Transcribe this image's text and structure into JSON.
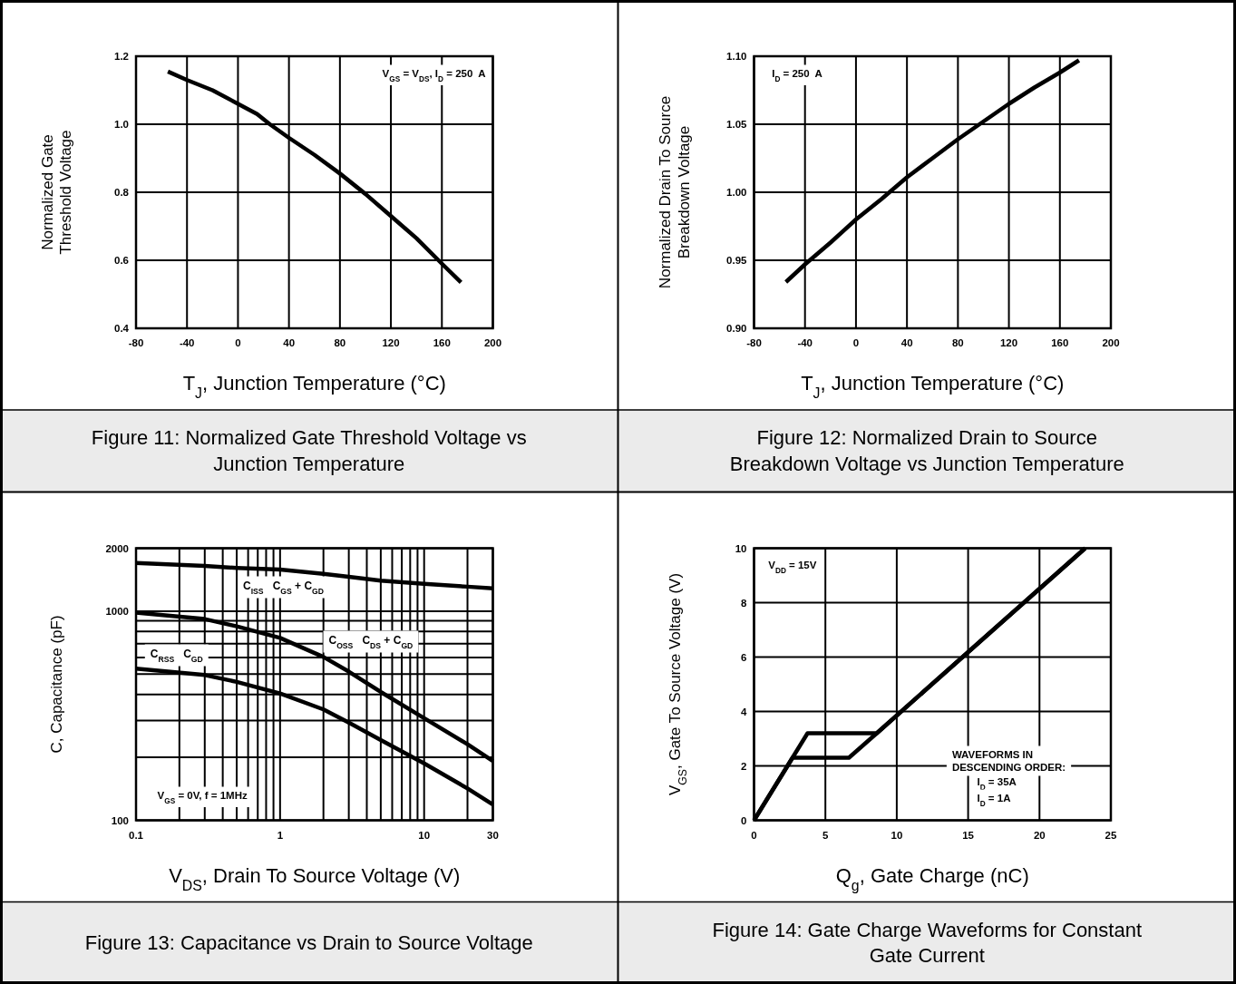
{
  "chart_data": [
    {
      "type": "line",
      "title": "Figure 11: Normalized Gate Threshold Voltage vs\nJunction Temperature",
      "xlabel": "T$_{J}$, Junction Temperature (°C)",
      "ylabel": "Normalized Gate\nThreshold Voltage",
      "xlim": [
        -80,
        200
      ],
      "xticks": [
        -80,
        -40,
        0,
        40,
        80,
        120,
        160,
        200
      ],
      "ylim": [
        0.4,
        1.2
      ],
      "yticks": [
        0.4,
        0.6,
        0.8,
        {
          "value": 1,
          "label": "1.0"
        },
        1.2
      ],
      "grid": true,
      "x": [
        -55,
        -40,
        -20,
        0,
        15,
        25,
        40,
        60,
        80,
        100,
        120,
        140,
        160,
        175
      ],
      "series": [
        {
          "color": "#000000",
          "values": [
            1.155,
            1.13,
            1.1,
            1.06,
            1.03,
            1.0,
            0.96,
            0.91,
            0.855,
            0.795,
            0.73,
            0.665,
            0.59,
            0.535
          ]
        }
      ],
      "annotations": [
        "V$_{GS}$ = V$_{DS}$, I$_{D}$ = 250  A"
      ]
    },
    {
      "type": "line",
      "title": "Figure 12: Normalized Drain to Source\nBreakdown Voltage vs Junction Temperature",
      "xlabel": "T$_{J}$, Junction Temperature (°C)",
      "ylabel": "Normalized Drain To Source\nBreakdown Voltage",
      "xlim": [
        -80,
        200
      ],
      "xticks": [
        -80,
        -40,
        0,
        40,
        80,
        120,
        160,
        200
      ],
      "ylim": [
        0.9,
        1.1
      ],
      "yticks": [
        {
          "value": 0.9,
          "label": "0.90"
        },
        0.95,
        {
          "value": 1,
          "label": "1.00"
        },
        1.05,
        {
          "value": 1.1,
          "label": "1.10"
        }
      ],
      "grid": true,
      "x": [
        -55,
        -40,
        -20,
        0,
        20,
        40,
        60,
        80,
        100,
        120,
        140,
        160,
        175
      ],
      "series": [
        {
          "color": "#000000",
          "values": [
            0.934,
            0.947,
            0.963,
            0.98,
            0.995,
            1.011,
            1.025,
            1.039,
            1.052,
            1.065,
            1.077,
            1.088,
            1.097
          ]
        }
      ],
      "annotations": [
        "I$_{D}$ = 250  A"
      ]
    },
    {
      "type": "line",
      "title": "Figure 13: Capacitance vs Drain to Source Voltage",
      "xlabel": "V$_{DS}$, Drain To Source Voltage (V)",
      "ylabel": "C, Capacitance (pF)",
      "log": "xy",
      "xlim": [
        0.1,
        30
      ],
      "xticks": [
        0.1,
        {
          "value": 0.2,
          "label": null
        },
        {
          "value": 0.3,
          "label": null
        },
        {
          "value": 0.4,
          "label": null
        },
        {
          "value": 0.5,
          "label": null
        },
        {
          "value": 0.6,
          "label": null
        },
        {
          "value": 0.7,
          "label": null
        },
        {
          "value": 0.8,
          "label": null
        },
        {
          "value": 0.9,
          "label": null
        },
        1,
        {
          "value": 2,
          "label": null
        },
        {
          "value": 3,
          "label": null
        },
        {
          "value": 4,
          "label": null
        },
        {
          "value": 5,
          "label": null
        },
        {
          "value": 6,
          "label": null
        },
        {
          "value": 7,
          "label": null
        },
        {
          "value": 8,
          "label": null
        },
        {
          "value": 9,
          "label": null
        },
        10,
        {
          "value": 20,
          "label": null
        },
        30
      ],
      "ylim": [
        100,
        2000
      ],
      "yticks": [
        100,
        {
          "value": 200,
          "label": null
        },
        {
          "value": 300,
          "label": null
        },
        {
          "value": 400,
          "label": null
        },
        {
          "value": 500,
          "label": null
        },
        {
          "value": 600,
          "label": null
        },
        {
          "value": 700,
          "label": null
        },
        {
          "value": 800,
          "label": null
        },
        {
          "value": 900,
          "label": null
        },
        1000,
        2000
      ],
      "grid": true,
      "x": [
        0.1,
        0.3,
        0.5,
        1,
        2,
        3,
        5,
        10,
        20,
        30
      ],
      "series": [
        {
          "name": "C$_{ISS}$   C$_{GS}$ + C$_{GD}$",
          "color": "#000000",
          "values": [
            1700,
            1645,
            1610,
            1580,
            1510,
            1460,
            1400,
            1350,
            1310,
            1285
          ]
        },
        {
          "name": "C$_{OSS}$   C$_{DS}$ + C$_{GD}$",
          "color": "#000000",
          "values": [
            985,
            917,
            846,
            745,
            604,
            514,
            411,
            308,
            231,
            192
          ]
        },
        {
          "name": "C$_{RSS}$   C$_{GD}$",
          "color": "#000000",
          "values": [
            531,
            495,
            459,
            404,
            339,
            293,
            242,
            187,
            142,
            119
          ]
        }
      ],
      "annotations": [
        "V$_{GS}$ = 0V, f = 1MHz"
      ]
    },
    {
      "type": "line",
      "title": "Figure 14: Gate Charge Waveforms for Constant\nGate Current",
      "xlabel": "Q$_{g}$, Gate Charge (nC)",
      "ylabel": "V$_{GS}$, Gate To Source Voltage (V)",
      "xlim": [
        0,
        25
      ],
      "xticks": [
        0,
        5,
        10,
        15,
        20,
        25
      ],
      "ylim": [
        0,
        10
      ],
      "yticks": [
        0,
        2,
        4,
        6,
        8,
        10
      ],
      "grid": true,
      "series": [
        {
          "color": "#000000",
          "x": [
            0,
            3.75,
            8.6,
            23.2
          ],
          "values": [
            0,
            3.2,
            3.2,
            10
          ]
        },
        {
          "color": "#000000",
          "x": [
            0,
            2.7,
            6.65,
            8.6,
            23.2
          ],
          "values": [
            0,
            2.3,
            2.3,
            3.2,
            10
          ]
        }
      ],
      "annotations": [
        "V$_{DD}$ = 15V",
        "WAVEFORMS IN\nDESCENDING ORDER:",
        "I$_{D}$ = 35A",
        "I$_{D}$ = 1A"
      ]
    }
  ]
}
